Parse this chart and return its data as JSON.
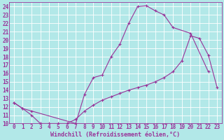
{
  "xlabel": "Windchill (Refroidissement éolien,°C)",
  "bg_color": "#b2e8e8",
  "grid_color": "#ffffff",
  "line_color": "#993399",
  "xlim": [
    -0.5,
    23.5
  ],
  "ylim": [
    10,
    24.5
  ],
  "xticks": [
    0,
    1,
    2,
    3,
    4,
    5,
    6,
    7,
    8,
    9,
    10,
    11,
    12,
    13,
    14,
    15,
    16,
    17,
    18,
    19,
    20,
    21,
    22,
    23
  ],
  "yticks": [
    10,
    11,
    12,
    13,
    14,
    15,
    16,
    17,
    18,
    19,
    20,
    21,
    22,
    23,
    24
  ],
  "line1_x": [
    0,
    1,
    2,
    3,
    4,
    5,
    6,
    7,
    8,
    9,
    10,
    11,
    12,
    13,
    14,
    15,
    16,
    17,
    18,
    19,
    20,
    21,
    22,
    23
  ],
  "line1_y": [
    12.5,
    11.8,
    11.0,
    10.0,
    10.0,
    10.0,
    10.0,
    10.5,
    11.5,
    12.2,
    12.8,
    13.2,
    13.6,
    14.0,
    14.3,
    14.6,
    15.0,
    15.5,
    16.2,
    17.5,
    20.5,
    20.2,
    18.2,
    14.3
  ],
  "line2_x": [
    0,
    1,
    2,
    7,
    8,
    9,
    10,
    11,
    12,
    13,
    14,
    15,
    16,
    17,
    18,
    20,
    22
  ],
  "line2_y": [
    12.5,
    11.8,
    11.5,
    10.0,
    13.5,
    15.5,
    15.8,
    18.0,
    19.5,
    22.0,
    24.0,
    24.1,
    23.5,
    23.0,
    21.5,
    20.8,
    16.2
  ],
  "font_color": "#993399",
  "font_size_label": 6.0,
  "font_size_tick": 5.5
}
